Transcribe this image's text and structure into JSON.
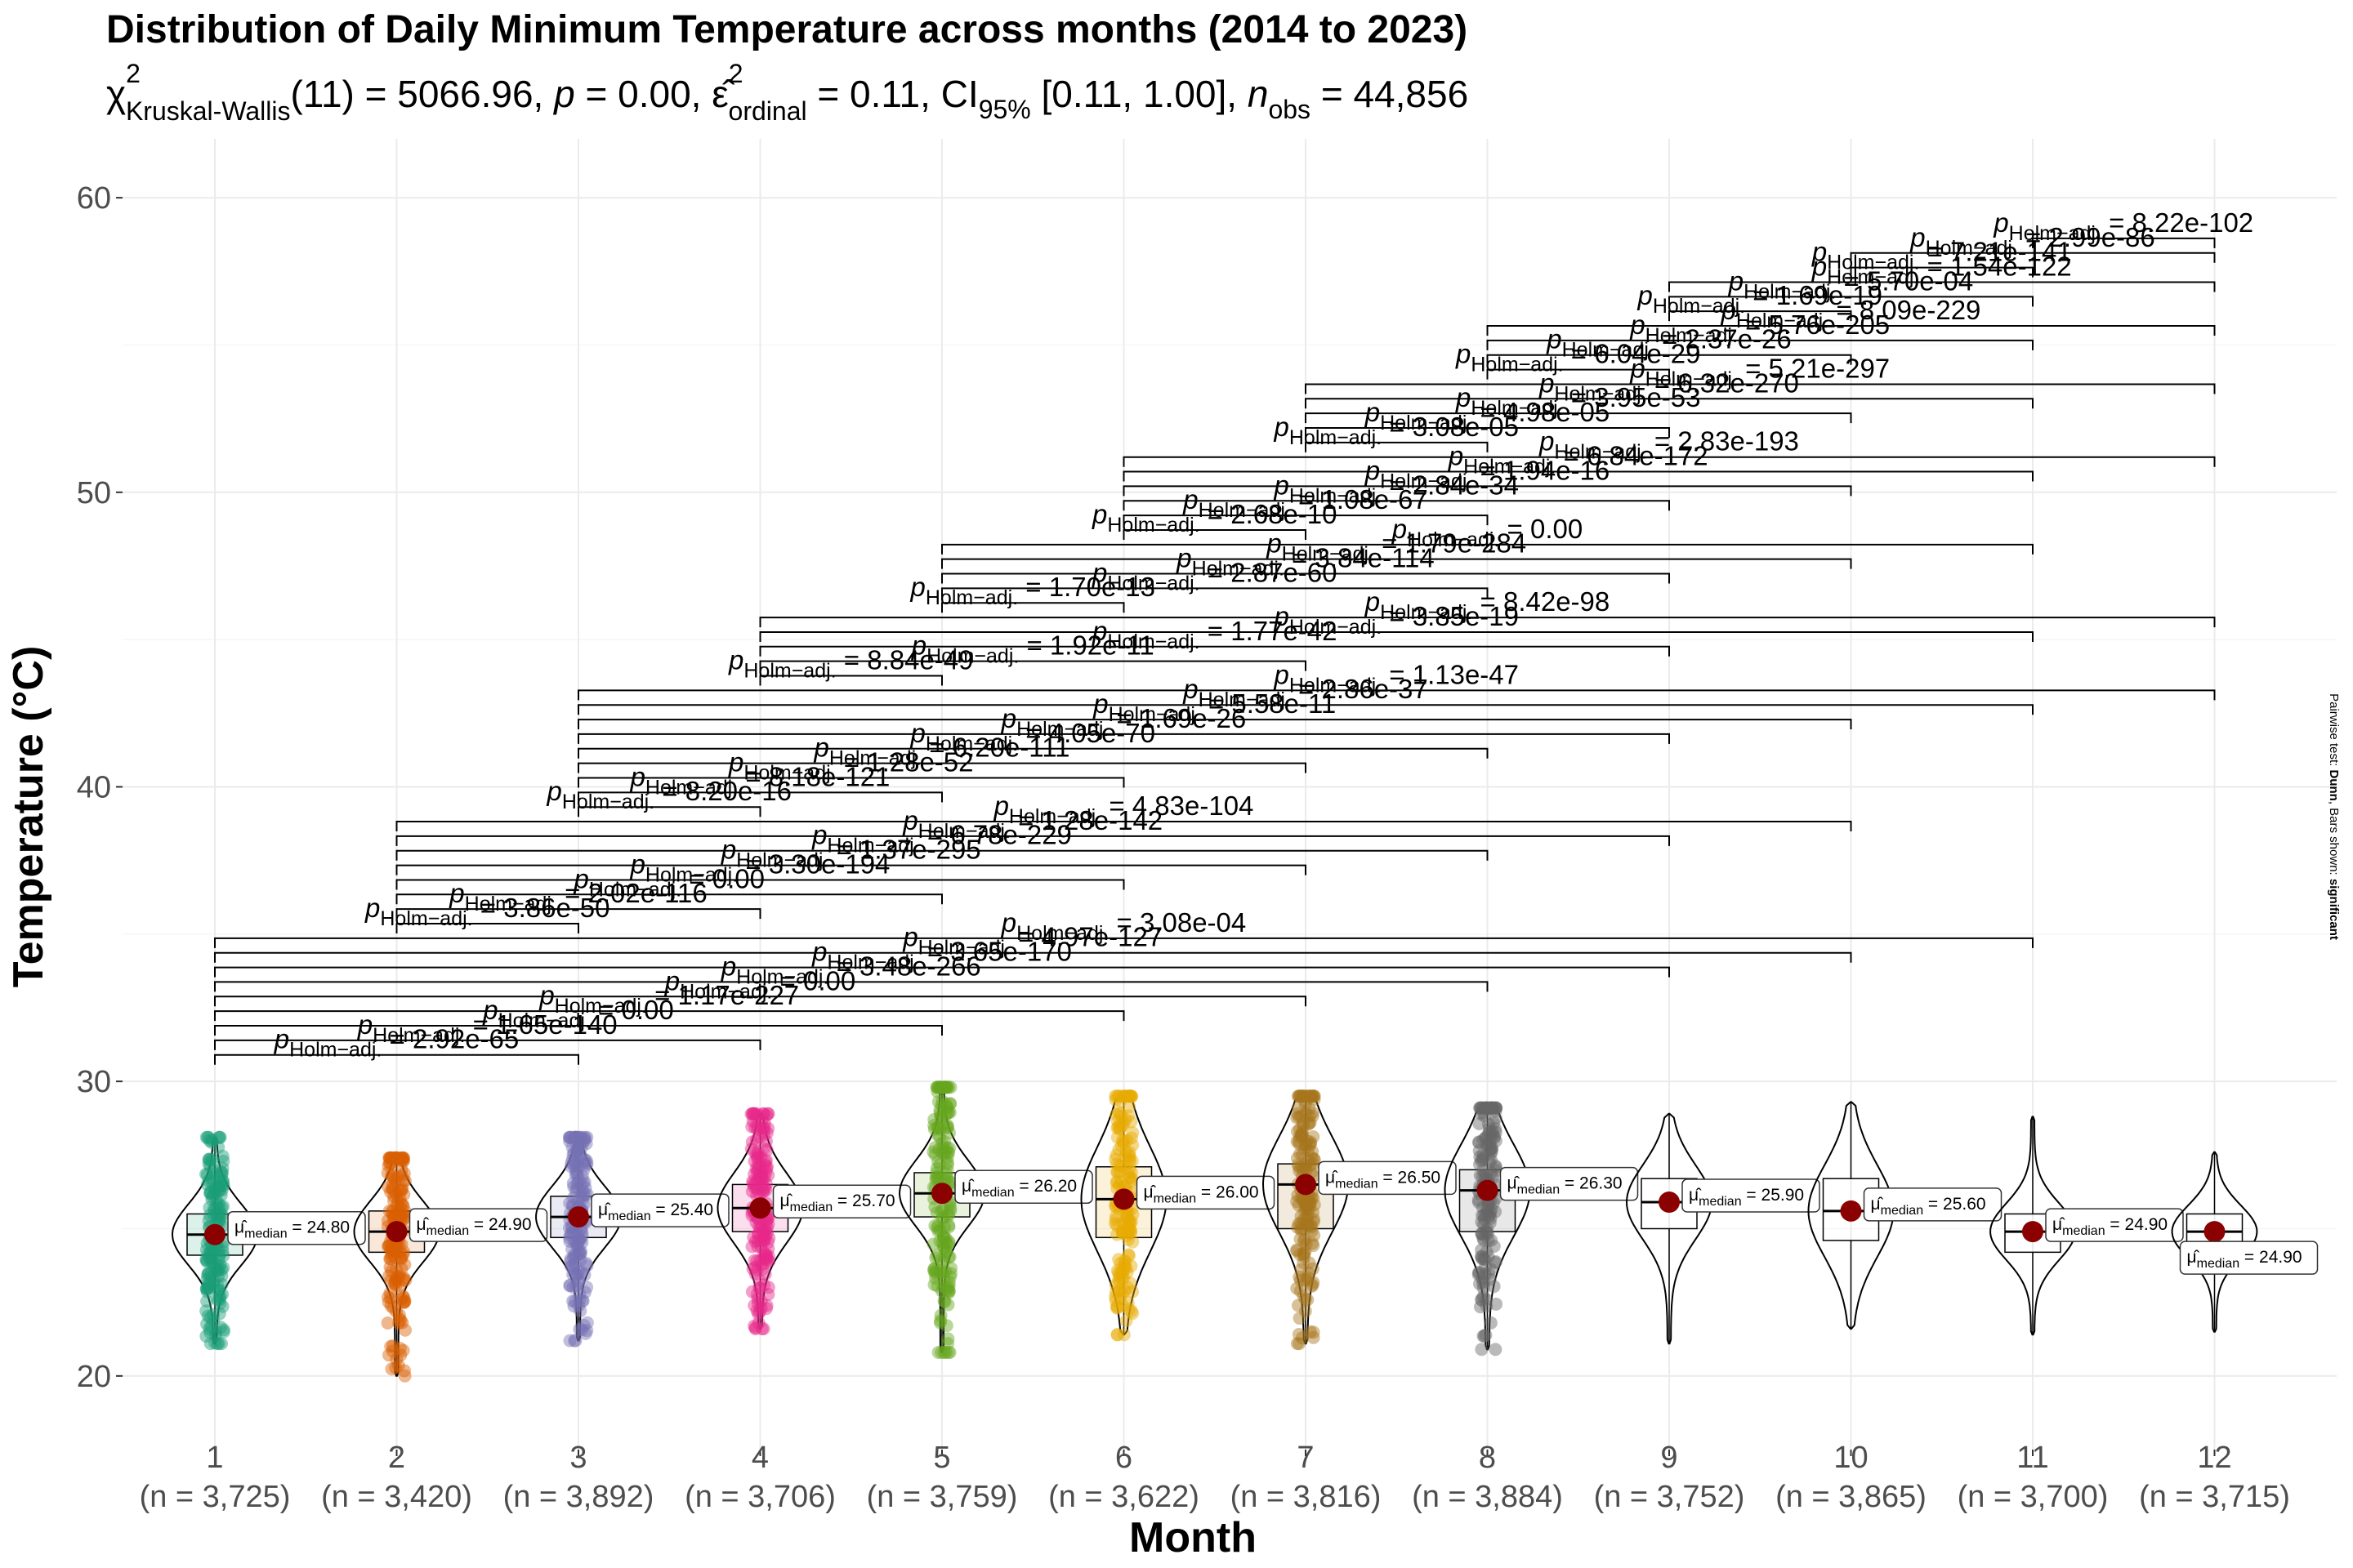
{
  "chart_data": {
    "type": "violin",
    "title": "Distribution of Daily Minimum Temperature across months (2014 to 2023)",
    "subtitle": {
      "chi_symbol": "χ",
      "chi_sup": "2",
      "chi_sub": "Kruskal-Wallis",
      "rest1": "(11) = 5066.96, ",
      "p": "p",
      "rest2": " = 0.00, ",
      "eps": "ε̂",
      "eps_sup": "2",
      "eps_sub": "ordinal",
      "rest3": " = 0.11, CI",
      "ci_sub": "95%",
      "rest4": " [0.11, 1.00], ",
      "n": "n",
      "n_sub": "obs",
      "rest5": " = 44,856"
    },
    "xlabel": "Month",
    "ylabel": "Temperature (°C)",
    "caption": {
      "prefix": "Pairwise test: ",
      "test": "Dunn",
      "mid": ", Bars shown: ",
      "shown": "significant"
    },
    "ylim": [
      17.5,
      62
    ],
    "yticks": [
      20,
      30,
      40,
      50,
      60
    ],
    "categories": [
      "1",
      "2",
      "3",
      "4",
      "5",
      "6",
      "7",
      "8",
      "9",
      "10",
      "11",
      "12"
    ],
    "n_labels": [
      "(n = 3,725)",
      "(n = 3,420)",
      "(n = 3,892)",
      "(n = 3,706)",
      "(n = 3,759)",
      "(n = 3,622)",
      "(n = 3,816)",
      "(n = 3,884)",
      "(n = 3,752)",
      "(n = 3,865)",
      "(n = 3,700)",
      "(n = 3,715)"
    ],
    "colors": [
      "#1B9E77",
      "#D95F02",
      "#7570B3",
      "#E7298A",
      "#66A61E",
      "#E6AB02",
      "#A6761D",
      "#666666",
      null,
      null,
      null,
      null
    ],
    "median_color": "#8B0000",
    "median_prefix": "μ̂",
    "median_sub": "median",
    "medians": [
      24.8,
      24.9,
      25.4,
      25.7,
      26.2,
      26.0,
      26.5,
      26.3,
      25.9,
      25.6,
      24.9,
      24.9
    ],
    "median_labels": [
      "24.80",
      "24.90",
      "25.40",
      "25.70",
      "26.20",
      "26.00",
      "26.50",
      "26.30",
      "25.90",
      "25.60",
      "24.90",
      "24.90"
    ],
    "q1": [
      24.1,
      24.2,
      24.7,
      24.9,
      25.4,
      24.7,
      25.0,
      24.9,
      25.0,
      24.6,
      24.2,
      24.3
    ],
    "q3": [
      25.5,
      25.6,
      26.1,
      26.5,
      26.9,
      27.1,
      27.2,
      27.0,
      26.7,
      26.7,
      25.5,
      25.5
    ],
    "min": [
      21.1,
      20.0,
      21.2,
      21.6,
      20.8,
      21.4,
      21.1,
      20.9,
      21.1,
      21.6,
      21.4,
      21.5
    ],
    "max": [
      28.1,
      27.4,
      28.1,
      28.9,
      29.8,
      29.5,
      29.5,
      29.1,
      28.9,
      29.3,
      28.8,
      27.6
    ],
    "p_symbol": "p",
    "p_sub": "Holm−adj.",
    "comparisons": [
      {
        "group1": "1",
        "group2": "3",
        "label": "2.92e-65"
      },
      {
        "group1": "1",
        "group2": "4",
        "label": "1.65e-140"
      },
      {
        "group1": "1",
        "group2": "5",
        "label": "0.00"
      },
      {
        "group1": "1",
        "group2": "6",
        "label": "1.17e-227"
      },
      {
        "group1": "1",
        "group2": "7",
        "label": "0.00"
      },
      {
        "group1": "1",
        "group2": "8",
        "label": "3.48e-266"
      },
      {
        "group1": "1",
        "group2": "9",
        "label": "3.65e-170"
      },
      {
        "group1": "1",
        "group2": "10",
        "label": "4.97e-127"
      },
      {
        "group1": "1",
        "group2": "11",
        "label": "3.08e-04"
      },
      {
        "group1": "2",
        "group2": "3",
        "label": "3.86e-50"
      },
      {
        "group1": "2",
        "group2": "4",
        "label": "2.02e-116"
      },
      {
        "group1": "2",
        "group2": "5",
        "label": "0.00"
      },
      {
        "group1": "2",
        "group2": "6",
        "label": "3.30e-194"
      },
      {
        "group1": "2",
        "group2": "7",
        "label": "1.37e-295"
      },
      {
        "group1": "2",
        "group2": "8",
        "label": "6.78e-229"
      },
      {
        "group1": "2",
        "group2": "9",
        "label": "1.28e-142"
      },
      {
        "group1": "2",
        "group2": "10",
        "label": "4.83e-104"
      },
      {
        "group1": "3",
        "group2": "4",
        "label": "8.20e-16"
      },
      {
        "group1": "3",
        "group2": "5",
        "label": "8.18e-121"
      },
      {
        "group1": "3",
        "group2": "6",
        "label": "1.28e-52"
      },
      {
        "group1": "3",
        "group2": "7",
        "label": "6.20e-111"
      },
      {
        "group1": "3",
        "group2": "8",
        "label": "4.05e-70"
      },
      {
        "group1": "3",
        "group2": "9",
        "label": "1.69e-26"
      },
      {
        "group1": "3",
        "group2": "10",
        "label": "5.58e-11"
      },
      {
        "group1": "3",
        "group2": "11",
        "label": "2.86e-37"
      },
      {
        "group1": "3",
        "group2": "12",
        "label": "1.13e-47"
      },
      {
        "group1": "4",
        "group2": "5",
        "label": "8.84e-49"
      },
      {
        "group1": "4",
        "group2": "7",
        "label": "1.92e-11"
      },
      {
        "group1": "4",
        "group2": "9",
        "label": "1.77e-42"
      },
      {
        "group1": "4",
        "group2": "11",
        "label": "3.85e-19"
      },
      {
        "group1": "4",
        "group2": "12",
        "label": "8.42e-98"
      },
      {
        "group1": "5",
        "group2": "6",
        "label": "1.70e-13"
      },
      {
        "group1": "5",
        "group2": "8",
        "label": "2.87e-60"
      },
      {
        "group1": "5",
        "group2": "9",
        "label": "3.84e-114"
      },
      {
        "group1": "5",
        "group2": "10",
        "label": "1.79e-284"
      },
      {
        "group1": "5",
        "group2": "11",
        "label": "0.00"
      },
      {
        "group1": "6",
        "group2": "7",
        "label": "2.68e-10"
      },
      {
        "group1": "6",
        "group2": "8",
        "label": "1.08e-67"
      },
      {
        "group1": "6",
        "group2": "9",
        "label": "2.84e-34"
      },
      {
        "group1": "6",
        "group2": "10",
        "label": "1.94e-16"
      },
      {
        "group1": "6",
        "group2": "11",
        "label": "6.84e-172"
      },
      {
        "group1": "6",
        "group2": "12",
        "label": "2.83e-193"
      },
      {
        "group1": "7",
        "group2": "8",
        "label": "3.08e-05"
      },
      {
        "group1": "7",
        "group2": "9",
        "label": "4.98e-05"
      },
      {
        "group1": "7",
        "group2": "10",
        "label": "3.95e-53"
      },
      {
        "group1": "7",
        "group2": "11",
        "label": "6.32e-270"
      },
      {
        "group1": "7",
        "group2": "12",
        "label": "5.21e-297"
      },
      {
        "group1": "8",
        "group2": "9",
        "label": "6.04e-29"
      },
      {
        "group1": "8",
        "group2": "10",
        "label": "2.37e-26"
      },
      {
        "group1": "8",
        "group2": "11",
        "label": "5.76e-205"
      },
      {
        "group1": "8",
        "group2": "12",
        "label": "8.09e-229"
      },
      {
        "group1": "9",
        "group2": "10",
        "label": "1.69e-19"
      },
      {
        "group1": "9",
        "group2": "11",
        "label": "5.70e-04"
      },
      {
        "group1": "9",
        "group2": "12",
        "label": "1.54e-122"
      },
      {
        "group1": "10",
        "group2": "11",
        "label": "7.21e-141"
      },
      {
        "group1": "10",
        "group2": "12",
        "label": "2.99e-86"
      },
      {
        "group1": "11",
        "group2": "12",
        "label": "8.22e-102"
      }
    ]
  }
}
